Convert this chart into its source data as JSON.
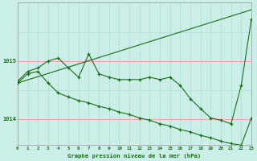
{
  "title": "Graphe pression niveau de la mer (hPa)",
  "background_color": "#cceee8",
  "grid_color_major": "#ff9999",
  "grid_color_minor": "#aaddcc",
  "line_color": "#1a6e1a",
  "x_ticks": [
    0,
    1,
    2,
    3,
    4,
    5,
    6,
    7,
    8,
    9,
    10,
    11,
    12,
    13,
    14,
    15,
    16,
    17,
    18,
    19,
    20,
    21,
    22,
    23
  ],
  "y_ticks": [
    1014,
    1015
  ],
  "ylim": [
    1013.55,
    1016.0
  ],
  "xlim": [
    0,
    23
  ],
  "line1_straight": [
    0,
    23,
    1014.62,
    1015.88
  ],
  "line2": [
    1014.65,
    1014.82,
    1014.88,
    1015.0,
    1015.05,
    1014.88,
    1014.72,
    1015.12,
    1014.78,
    1014.72,
    1014.68,
    1014.68,
    1014.68,
    1014.72,
    1014.68,
    1014.72,
    1014.58,
    1014.35,
    1014.18,
    1014.02,
    1013.98,
    1013.92,
    1014.58,
    1015.72
  ],
  "line3": [
    1014.62,
    1014.78,
    1014.82,
    1014.62,
    1014.45,
    1014.38,
    1014.32,
    1014.28,
    1014.22,
    1014.18,
    1014.12,
    1014.08,
    1014.02,
    1013.98,
    1013.92,
    1013.88,
    1013.82,
    1013.78,
    1013.72,
    1013.68,
    1013.62,
    1013.58,
    1013.55,
    1014.02
  ]
}
